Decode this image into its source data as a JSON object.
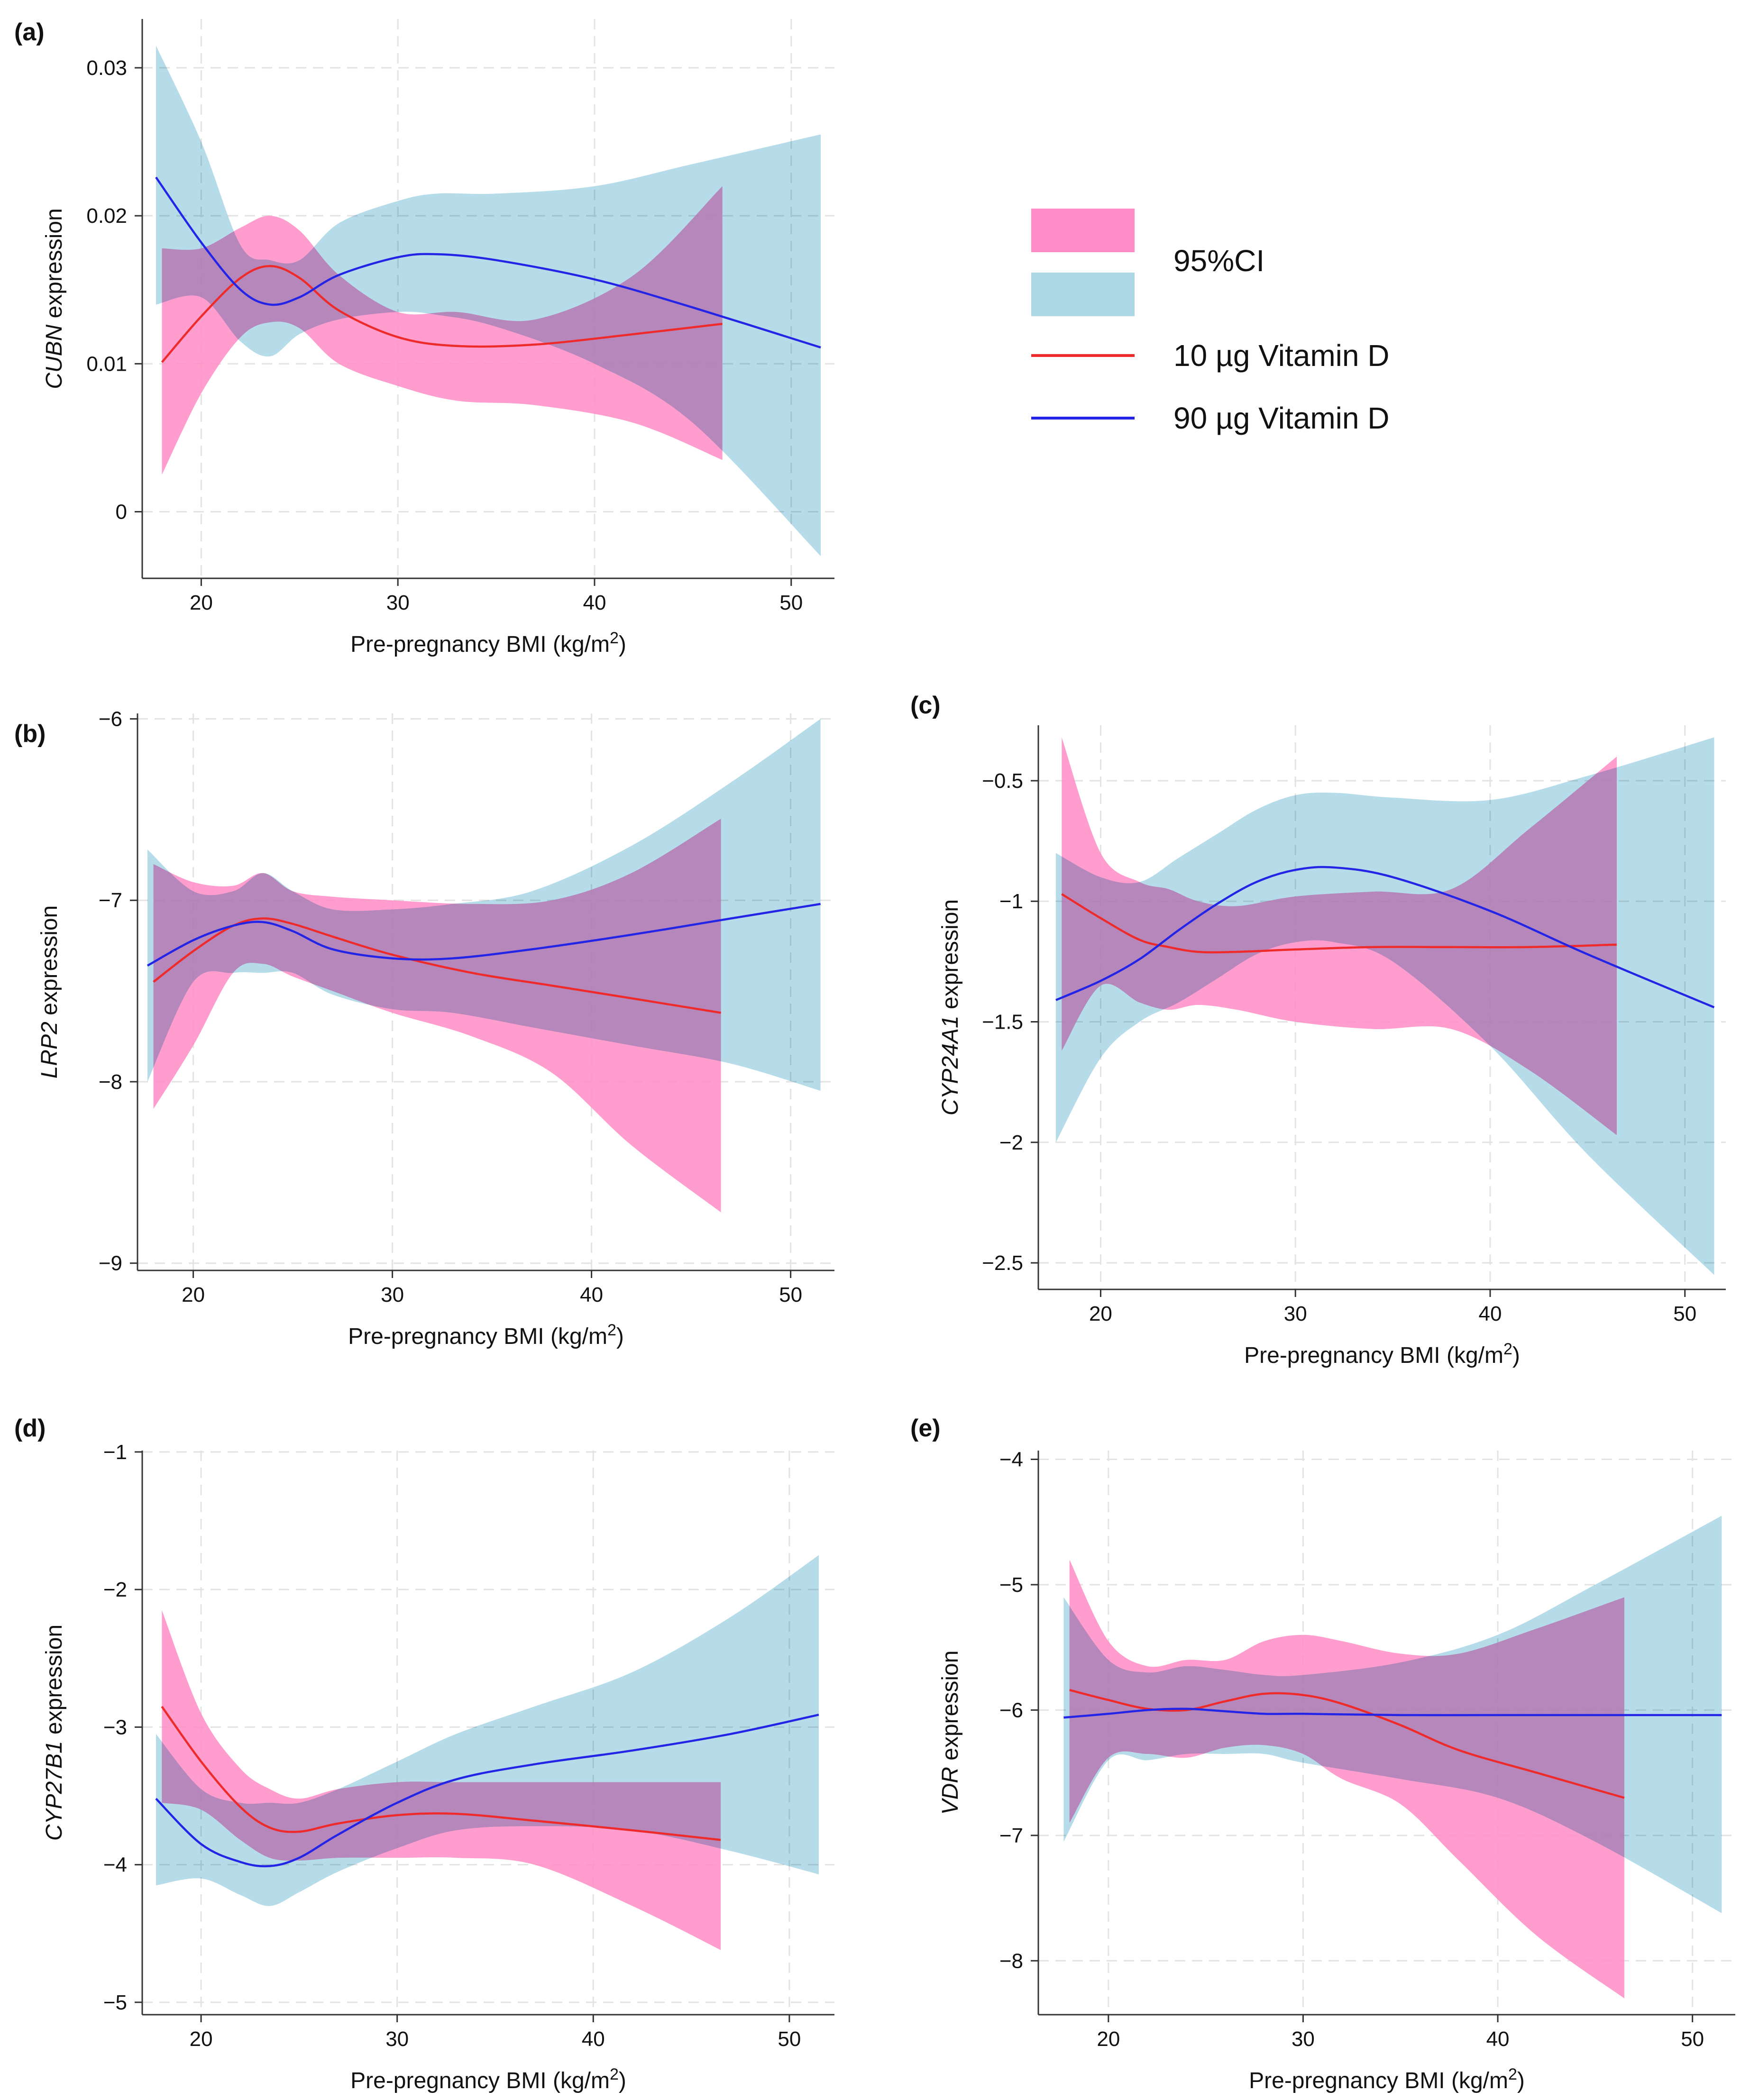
{
  "colors": {
    "red_line": "#ee2a2a",
    "blue_line": "#2424e6",
    "pink_band": "#ff8cc6",
    "blue_band": "#add8e6",
    "grid": "#e3e3e3",
    "axis": "#333333"
  },
  "legend": {
    "ci_label": "95%CI",
    "red_label": "10 µg Vitamin D",
    "blue_label": "90 µg Vitamin D"
  },
  "chart_data": [
    {
      "panel": "(a)",
      "type": "line",
      "ylabel_gene": "CUBN",
      "ylabel_suffix": " expression",
      "xlabel_base": "Pre-pregnancy BMI (kg/m",
      "xlabel_sup": "2",
      "xlabel_end": ")",
      "xlim": [
        17,
        52.2
      ],
      "ylim": [
        -0.0045,
        0.0333
      ],
      "xticks": [
        20,
        30,
        40,
        50
      ],
      "yticks": [
        0,
        0.01,
        0.02,
        0.03
      ],
      "ytick_labels": [
        "0",
        "0.01",
        "0.02",
        "0.03"
      ],
      "series": [
        {
          "name": "10 µg Vitamin D",
          "color": "red",
          "x": [
            18,
            20,
            22,
            23.5,
            25,
            27,
            30,
            33,
            37,
            42,
            46.5
          ],
          "y": [
            0.0101,
            0.0132,
            0.0158,
            0.0166,
            0.0158,
            0.0136,
            0.0118,
            0.0112,
            0.0113,
            0.012,
            0.0127
          ],
          "ci_upper": [
            0.0178,
            0.0178,
            0.0192,
            0.02,
            0.019,
            0.016,
            0.0135,
            0.0135,
            0.013,
            0.016,
            0.022
          ],
          "ci_lower": [
            0.0025,
            0.008,
            0.0118,
            0.0128,
            0.0124,
            0.01,
            0.0085,
            0.0075,
            0.0072,
            0.006,
            0.0035
          ]
        },
        {
          "name": "90 µg Vitamin D",
          "color": "blue",
          "x": [
            17.7,
            20,
            22,
            23.5,
            25,
            27,
            30,
            32,
            35,
            40,
            45,
            51.5
          ],
          "y": [
            0.0226,
            0.0182,
            0.015,
            0.014,
            0.0145,
            0.016,
            0.0172,
            0.0174,
            0.017,
            0.0157,
            0.0138,
            0.0111
          ],
          "ci_upper": [
            0.0315,
            0.025,
            0.018,
            0.017,
            0.017,
            0.0195,
            0.021,
            0.0215,
            0.0215,
            0.022,
            0.0235,
            0.0255
          ],
          "ci_lower": [
            0.014,
            0.0145,
            0.0115,
            0.0105,
            0.012,
            0.013,
            0.0135,
            0.0133,
            0.0125,
            0.01,
            0.006,
            -0.003
          ]
        }
      ]
    },
    {
      "panel": "(b)",
      "type": "line",
      "ylabel_gene": "LRP2",
      "ylabel_suffix": " expression",
      "xlabel_base": "Pre-pregnancy BMI (kg/m",
      "xlabel_sup": "2",
      "xlabel_end": ")",
      "xlim": [
        17.2,
        52.2
      ],
      "ylim": [
        -9.04,
        -5.97
      ],
      "xticks": [
        20,
        30,
        40,
        50
      ],
      "yticks": [
        -9,
        -8,
        -7,
        -6
      ],
      "ytick_labels": [
        "−9",
        "−8",
        "−7",
        "−6"
      ],
      "series": [
        {
          "name": "10 µg Vitamin D",
          "color": "red",
          "x": [
            18,
            20,
            22,
            23.5,
            25,
            27,
            30,
            34,
            38,
            42,
            46.5
          ],
          "y": [
            -7.45,
            -7.28,
            -7.14,
            -7.1,
            -7.13,
            -7.2,
            -7.3,
            -7.4,
            -7.47,
            -7.54,
            -7.62
          ],
          "ci_upper": [
            -6.8,
            -6.9,
            -6.92,
            -6.85,
            -6.95,
            -6.98,
            -7.0,
            -7.02,
            -7.0,
            -6.85,
            -6.55
          ],
          "ci_lower": [
            -8.15,
            -7.8,
            -7.4,
            -7.35,
            -7.42,
            -7.5,
            -7.62,
            -7.75,
            -7.95,
            -8.35,
            -8.72
          ]
        },
        {
          "name": "90 µg Vitamin D",
          "color": "blue",
          "x": [
            17.7,
            20,
            22,
            23.5,
            25,
            27,
            30,
            33,
            37,
            42,
            47,
            51.5
          ],
          "y": [
            -7.36,
            -7.22,
            -7.14,
            -7.12,
            -7.17,
            -7.27,
            -7.32,
            -7.32,
            -7.27,
            -7.19,
            -7.1,
            -7.02
          ],
          "ci_upper": [
            -6.72,
            -6.95,
            -6.95,
            -6.85,
            -6.95,
            -7.05,
            -7.05,
            -7.02,
            -6.95,
            -6.7,
            -6.35,
            -6.0
          ],
          "ci_lower": [
            -8.0,
            -7.45,
            -7.4,
            -7.4,
            -7.4,
            -7.52,
            -7.6,
            -7.62,
            -7.7,
            -7.8,
            -7.9,
            -8.05
          ]
        }
      ]
    },
    {
      "panel": "(c)",
      "type": "line",
      "ylabel_gene": "CYP24A1",
      "ylabel_suffix": " expression",
      "xlabel_base": "Pre-pregnancy BMI (kg/m",
      "xlabel_sup": "2",
      "xlabel_end": ")",
      "xlim": [
        16.8,
        52.1
      ],
      "ylim": [
        -2.61,
        -0.27
      ],
      "xticks": [
        20,
        30,
        40,
        50
      ],
      "yticks": [
        -2.5,
        -2,
        -1.5,
        -1,
        -0.5
      ],
      "ytick_labels": [
        "−2.5",
        "−2",
        "−1.5",
        "−1",
        "−0.5"
      ],
      "series": [
        {
          "name": "10 µg Vitamin D",
          "color": "red",
          "x": [
            18,
            20,
            22,
            23.5,
            25,
            27,
            30,
            34,
            38,
            42,
            46.5
          ],
          "y": [
            -0.97,
            -1.07,
            -1.16,
            -1.19,
            -1.21,
            -1.21,
            -1.2,
            -1.19,
            -1.19,
            -1.19,
            -1.18
          ],
          "ci_upper": [
            -0.32,
            -0.8,
            -0.92,
            -0.95,
            -1.0,
            -1.02,
            -0.98,
            -0.96,
            -0.95,
            -0.7,
            -0.4
          ],
          "ci_lower": [
            -1.62,
            -1.35,
            -1.42,
            -1.45,
            -1.43,
            -1.45,
            -1.5,
            -1.53,
            -1.53,
            -1.7,
            -1.97
          ]
        },
        {
          "name": "90 µg Vitamin D",
          "color": "blue",
          "x": [
            17.7,
            20,
            22,
            24,
            26,
            28,
            30,
            32,
            35,
            40,
            45,
            51.5
          ],
          "y": [
            -1.41,
            -1.33,
            -1.24,
            -1.12,
            -1.01,
            -0.92,
            -0.87,
            -0.86,
            -0.9,
            -1.04,
            -1.22,
            -1.44
          ],
          "ci_upper": [
            -0.8,
            -0.9,
            -0.92,
            -0.82,
            -0.72,
            -0.62,
            -0.56,
            -0.55,
            -0.57,
            -0.58,
            -0.48,
            -0.32
          ],
          "ci_lower": [
            -2.0,
            -1.65,
            -1.5,
            -1.42,
            -1.32,
            -1.22,
            -1.17,
            -1.17,
            -1.25,
            -1.6,
            -2.05,
            -2.55
          ]
        }
      ]
    },
    {
      "panel": "(d)",
      "type": "line",
      "ylabel_gene": "CYP27B1",
      "ylabel_suffix": " expression",
      "xlabel_base": "Pre-pregnancy BMI (kg/m",
      "xlabel_sup": "2",
      "xlabel_end": ")",
      "xlim": [
        17,
        52.3
      ],
      "ylim": [
        -5.09,
        -0.99
      ],
      "xticks": [
        20,
        30,
        40,
        50
      ],
      "yticks": [
        -5,
        -4,
        -3,
        -2,
        -1
      ],
      "ytick_labels": [
        "−5",
        "−4",
        "−3",
        "−2",
        "−1"
      ],
      "series": [
        {
          "name": "10 µg Vitamin D",
          "color": "red",
          "x": [
            18,
            20,
            22,
            23.5,
            25,
            27,
            30,
            33,
            37,
            42,
            46.5
          ],
          "y": [
            -2.85,
            -3.25,
            -3.58,
            -3.73,
            -3.76,
            -3.7,
            -3.64,
            -3.63,
            -3.68,
            -3.75,
            -3.82
          ],
          "ci_upper": [
            -2.15,
            -2.9,
            -3.3,
            -3.45,
            -3.52,
            -3.45,
            -3.4,
            -3.4,
            -3.4,
            -3.4,
            -3.4
          ],
          "ci_lower": [
            -3.55,
            -3.6,
            -3.82,
            -3.95,
            -3.97,
            -3.95,
            -3.95,
            -3.95,
            -4.0,
            -4.3,
            -4.62
          ]
        },
        {
          "name": "90 µg Vitamin D",
          "color": "blue",
          "x": [
            17.7,
            20,
            22,
            23.5,
            25,
            27,
            30,
            33,
            37,
            42,
            47,
            51.5
          ],
          "y": [
            -3.52,
            -3.85,
            -3.98,
            -4.01,
            -3.95,
            -3.78,
            -3.55,
            -3.38,
            -3.27,
            -3.17,
            -3.05,
            -2.91
          ],
          "ci_upper": [
            -3.05,
            -3.45,
            -3.55,
            -3.55,
            -3.55,
            -3.45,
            -3.25,
            -3.05,
            -2.85,
            -2.6,
            -2.2,
            -1.75
          ],
          "ci_lower": [
            -4.15,
            -4.1,
            -4.22,
            -4.3,
            -4.2,
            -4.05,
            -3.88,
            -3.75,
            -3.72,
            -3.75,
            -3.9,
            -4.07
          ]
        }
      ]
    },
    {
      "panel": "(e)",
      "type": "line",
      "ylabel_gene": "VDR",
      "ylabel_suffix": " expression",
      "xlabel_base": "Pre-pregnancy BMI (kg/m",
      "xlabel_sup": "2",
      "xlabel_end": ")",
      "xlim": [
        16.4,
        52.2
      ],
      "ylim": [
        -8.43,
        -3.93
      ],
      "xticks": [
        20,
        30,
        40,
        50
      ],
      "yticks": [
        -8,
        -7,
        -6,
        -5,
        -4
      ],
      "ytick_labels": [
        "−8",
        "−7",
        "−6",
        "−5",
        "−4"
      ],
      "series": [
        {
          "name": "10 µg Vitamin D",
          "color": "red",
          "x": [
            18,
            20,
            22,
            24,
            26,
            28,
            30,
            32,
            35,
            38,
            42,
            46.5
          ],
          "y": [
            -5.84,
            -5.92,
            -5.99,
            -6.0,
            -5.93,
            -5.87,
            -5.88,
            -5.95,
            -6.12,
            -6.32,
            -6.5,
            -6.7
          ],
          "ci_upper": [
            -4.8,
            -5.45,
            -5.65,
            -5.6,
            -5.6,
            -5.45,
            -5.4,
            -5.45,
            -5.55,
            -5.55,
            -5.35,
            -5.1
          ],
          "ci_lower": [
            -6.9,
            -6.38,
            -6.35,
            -6.38,
            -6.3,
            -6.28,
            -6.35,
            -6.55,
            -6.75,
            -7.2,
            -7.8,
            -8.3
          ]
        },
        {
          "name": "90 µg Vitamin D",
          "color": "blue",
          "x": [
            17.7,
            20,
            22,
            24,
            26,
            28,
            30,
            35,
            40,
            45,
            51.5
          ],
          "y": [
            -6.06,
            -6.03,
            -6.0,
            -5.99,
            -6.01,
            -6.03,
            -6.03,
            -6.04,
            -6.04,
            -6.04,
            -6.04
          ],
          "ci_upper": [
            -5.1,
            -5.6,
            -5.7,
            -5.65,
            -5.68,
            -5.72,
            -5.72,
            -5.62,
            -5.4,
            -5.0,
            -4.45
          ],
          "ci_lower": [
            -7.05,
            -6.4,
            -6.4,
            -6.35,
            -6.35,
            -6.35,
            -6.42,
            -6.55,
            -6.7,
            -7.05,
            -7.62
          ]
        }
      ]
    }
  ]
}
